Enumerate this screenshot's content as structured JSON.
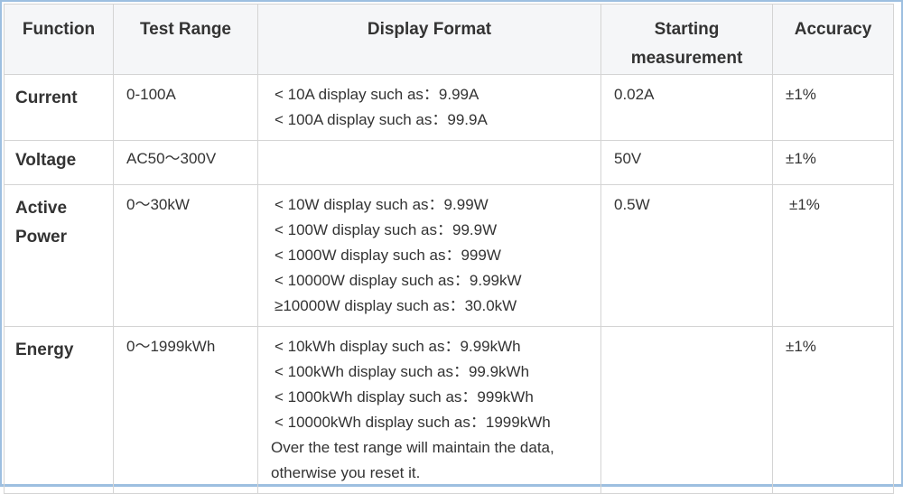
{
  "headers": [
    "Function",
    "Test Range",
    "Display Format",
    "Starting measurement",
    "Accuracy"
  ],
  "rows": [
    {
      "function": "Current",
      "range": "0-100A",
      "format": [
        "< 10A display such as：9.99A",
        "< 100A display such as：99.9A"
      ],
      "start": "0.02A",
      "accuracy": "±1%"
    },
    {
      "function": "Voltage",
      "range": "AC50～300V",
      "format": [],
      "start": "50V",
      "accuracy": "±1%"
    },
    {
      "function": "Active Power",
      "range": "0～30kW",
      "format": [
        "< 10W display such as：9.99W",
        "< 100W display such as：99.9W",
        "< 1000W display such as：999W",
        "< 10000W display such as：9.99kW",
        "≥10000W display such as：30.0kW"
      ],
      "start": "0.5W",
      "accuracy": "±1%"
    },
    {
      "function": "Energy",
      "range": "0～1999kWh",
      "format": [
        "< 10kWh display such as：9.99kWh",
        "< 100kWh display such as：99.9kWh",
        "< 1000kWh display such as：999kWh",
        "< 10000kWh display such as：1999kWh"
      ],
      "note": "Over the test range will maintain the data, otherwise you reset it.",
      "start": "",
      "accuracy": "±1%"
    }
  ]
}
